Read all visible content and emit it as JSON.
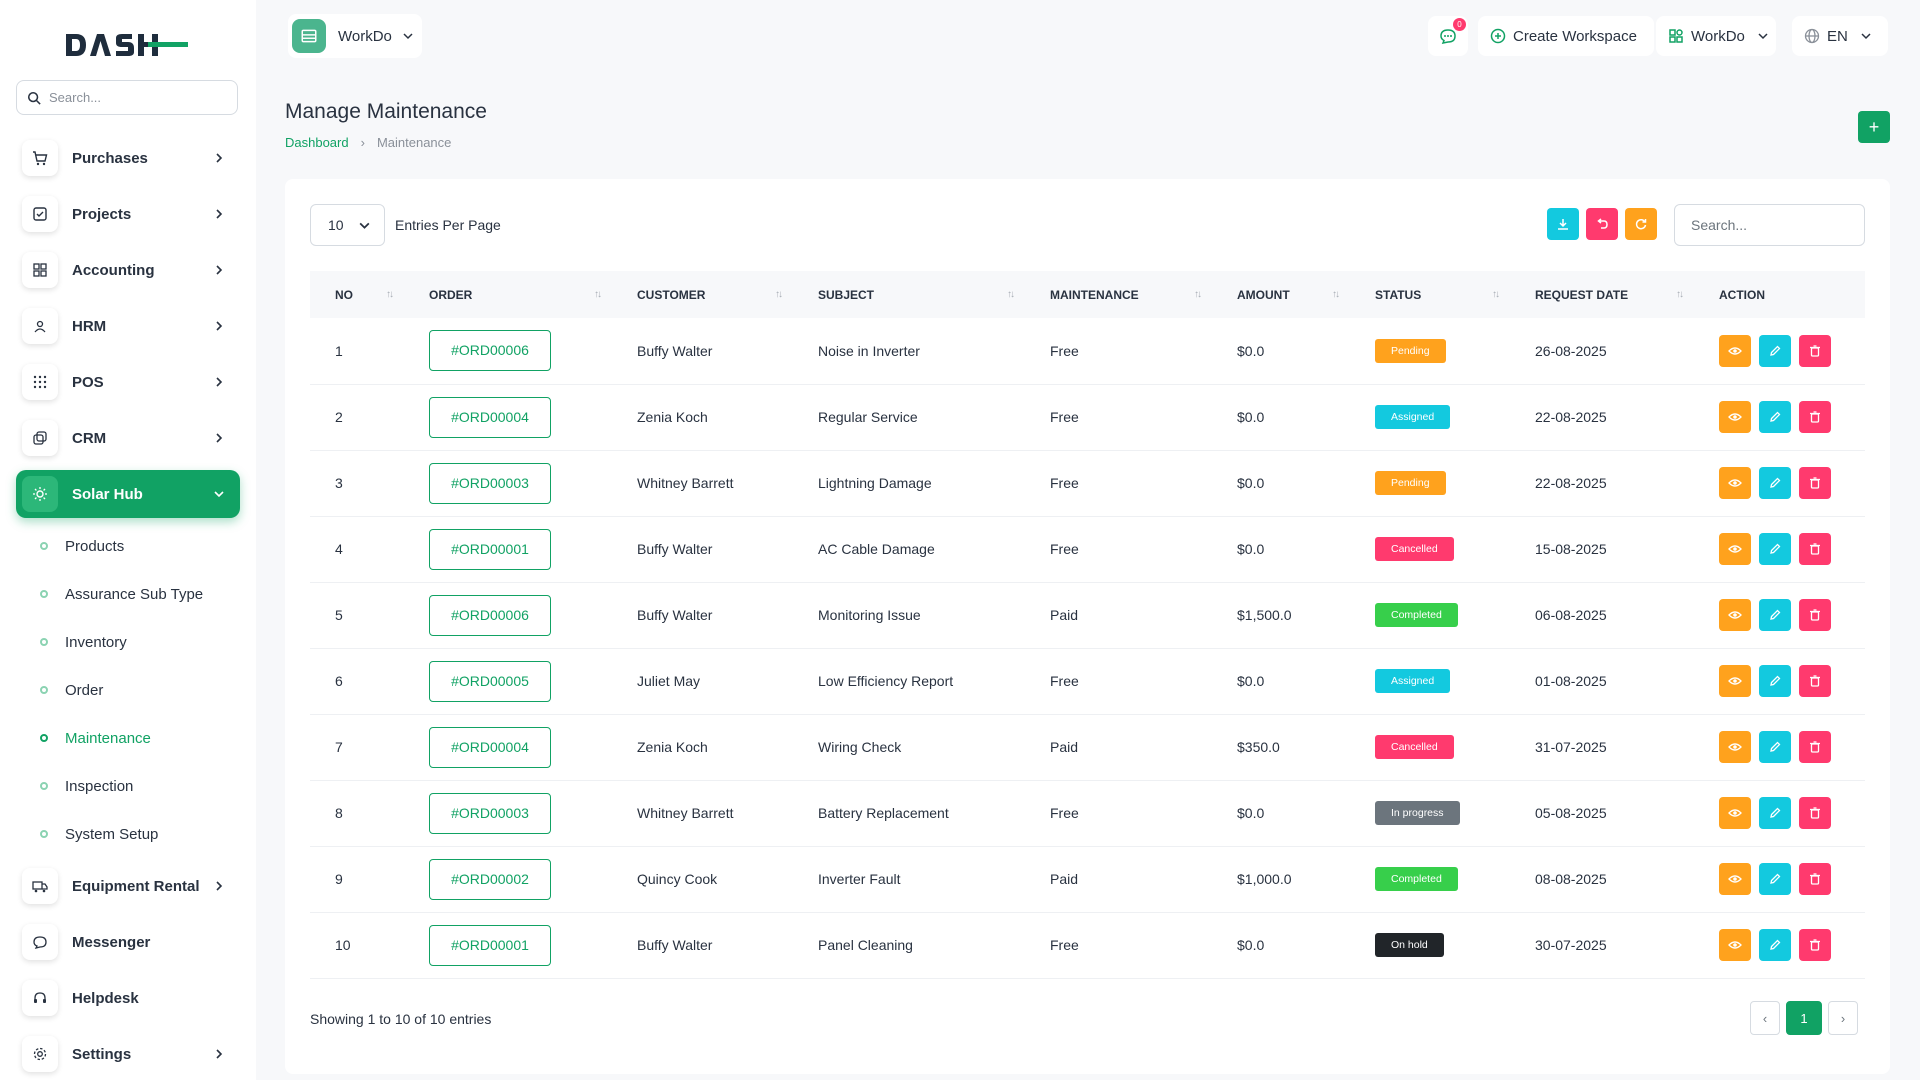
{
  "brand": {
    "logo_text": "DASH",
    "accent": "#11a264"
  },
  "sidebar": {
    "search_placeholder": "Search...",
    "items": [
      {
        "label": "Purchases",
        "icon": "cart-icon",
        "has_children": true
      },
      {
        "label": "Projects",
        "icon": "checklist-icon",
        "has_children": true
      },
      {
        "label": "Accounting",
        "icon": "grid-icon",
        "has_children": true
      },
      {
        "label": "HRM",
        "icon": "users-icon",
        "has_children": true
      },
      {
        "label": "POS",
        "icon": "dots-grid-icon",
        "has_children": true
      },
      {
        "label": "CRM",
        "icon": "layers-icon",
        "has_children": true
      },
      {
        "label": "Solar Hub",
        "icon": "sun-icon",
        "has_children": true,
        "active": true
      },
      {
        "label": "Equipment Rental",
        "icon": "truck-icon",
        "has_children": true
      },
      {
        "label": "Messenger",
        "icon": "chat-icon",
        "has_children": false
      },
      {
        "label": "Helpdesk",
        "icon": "headset-icon",
        "has_children": false
      },
      {
        "label": "Settings",
        "icon": "gear-icon",
        "has_children": true
      }
    ],
    "sub_items": [
      {
        "label": "Products"
      },
      {
        "label": "Assurance Sub Type"
      },
      {
        "label": "Inventory"
      },
      {
        "label": "Order"
      },
      {
        "label": "Maintenance",
        "active": true
      },
      {
        "label": "Inspection"
      },
      {
        "label": "System Setup"
      }
    ]
  },
  "header": {
    "workspace_name": "WorkDo",
    "message_count": "0",
    "create_workspace_label": "Create Workspace",
    "workspace_menu_label": "WorkDo",
    "language": "EN"
  },
  "page": {
    "title": "Manage Maintenance",
    "breadcrumb": {
      "home": "Dashboard",
      "current": "Maintenance"
    },
    "add_label": "+"
  },
  "table_controls": {
    "per_page_value": "10",
    "per_page_label": "Entries Per Page",
    "search_placeholder": "Search..."
  },
  "table": {
    "columns": [
      "NO",
      "ORDER",
      "CUSTOMER",
      "SUBJECT",
      "MAINTENANCE",
      "AMOUNT",
      "STATUS",
      "REQUEST DATE",
      "ACTION"
    ],
    "rows": [
      {
        "no": "1",
        "order": "#ORD00006",
        "customer": "Buffy Walter",
        "subject": "Noise in Inverter",
        "maintenance": "Free",
        "amount": "$0.0",
        "status": "Pending",
        "status_color": "#ffa21d",
        "date": "26-08-2025"
      },
      {
        "no": "2",
        "order": "#ORD00004",
        "customer": "Zenia Koch",
        "subject": "Regular Service",
        "maintenance": "Free",
        "amount": "$0.0",
        "status": "Assigned",
        "status_color": "#13c9df",
        "date": "22-08-2025"
      },
      {
        "no": "3",
        "order": "#ORD00003",
        "customer": "Whitney Barrett",
        "subject": "Lightning Damage",
        "maintenance": "Free",
        "amount": "$0.0",
        "status": "Pending",
        "status_color": "#ffa21d",
        "date": "22-08-2025"
      },
      {
        "no": "4",
        "order": "#ORD00001",
        "customer": "Buffy Walter",
        "subject": "AC Cable Damage",
        "maintenance": "Free",
        "amount": "$0.0",
        "status": "Cancelled",
        "status_color": "#ff3a6e",
        "date": "15-08-2025"
      },
      {
        "no": "5",
        "order": "#ORD00006",
        "customer": "Buffy Walter",
        "subject": "Monitoring Issue",
        "maintenance": "Paid",
        "amount": "$1,500.0",
        "status": "Completed",
        "status_color": "#37cf4b",
        "date": "06-08-2025"
      },
      {
        "no": "6",
        "order": "#ORD00005",
        "customer": "Juliet May",
        "subject": "Low Efficiency Report",
        "maintenance": "Free",
        "amount": "$0.0",
        "status": "Assigned",
        "status_color": "#13c9df",
        "date": "01-08-2025"
      },
      {
        "no": "7",
        "order": "#ORD00004",
        "customer": "Zenia Koch",
        "subject": "Wiring Check",
        "maintenance": "Paid",
        "amount": "$350.0",
        "status": "Cancelled",
        "status_color": "#ff3a6e",
        "date": "31-07-2025"
      },
      {
        "no": "8",
        "order": "#ORD00003",
        "customer": "Whitney Barrett",
        "subject": "Battery Replacement",
        "maintenance": "Free",
        "amount": "$0.0",
        "status": "In progress",
        "status_color": "#6c757d",
        "date": "05-08-2025"
      },
      {
        "no": "9",
        "order": "#ORD00002",
        "customer": "Quincy Cook",
        "subject": "Inverter Fault",
        "maintenance": "Paid",
        "amount": "$1,000.0",
        "status": "Completed",
        "status_color": "#37cf4b",
        "date": "08-08-2025"
      },
      {
        "no": "10",
        "order": "#ORD00001",
        "customer": "Buffy Walter",
        "subject": "Panel Cleaning",
        "maintenance": "Free",
        "amount": "$0.0",
        "status": "On hold",
        "status_color": "#212529",
        "date": "30-07-2025"
      }
    ]
  },
  "footer": {
    "showing_text": "Showing 1 to 10 of 10 entries",
    "current_page": "1"
  }
}
